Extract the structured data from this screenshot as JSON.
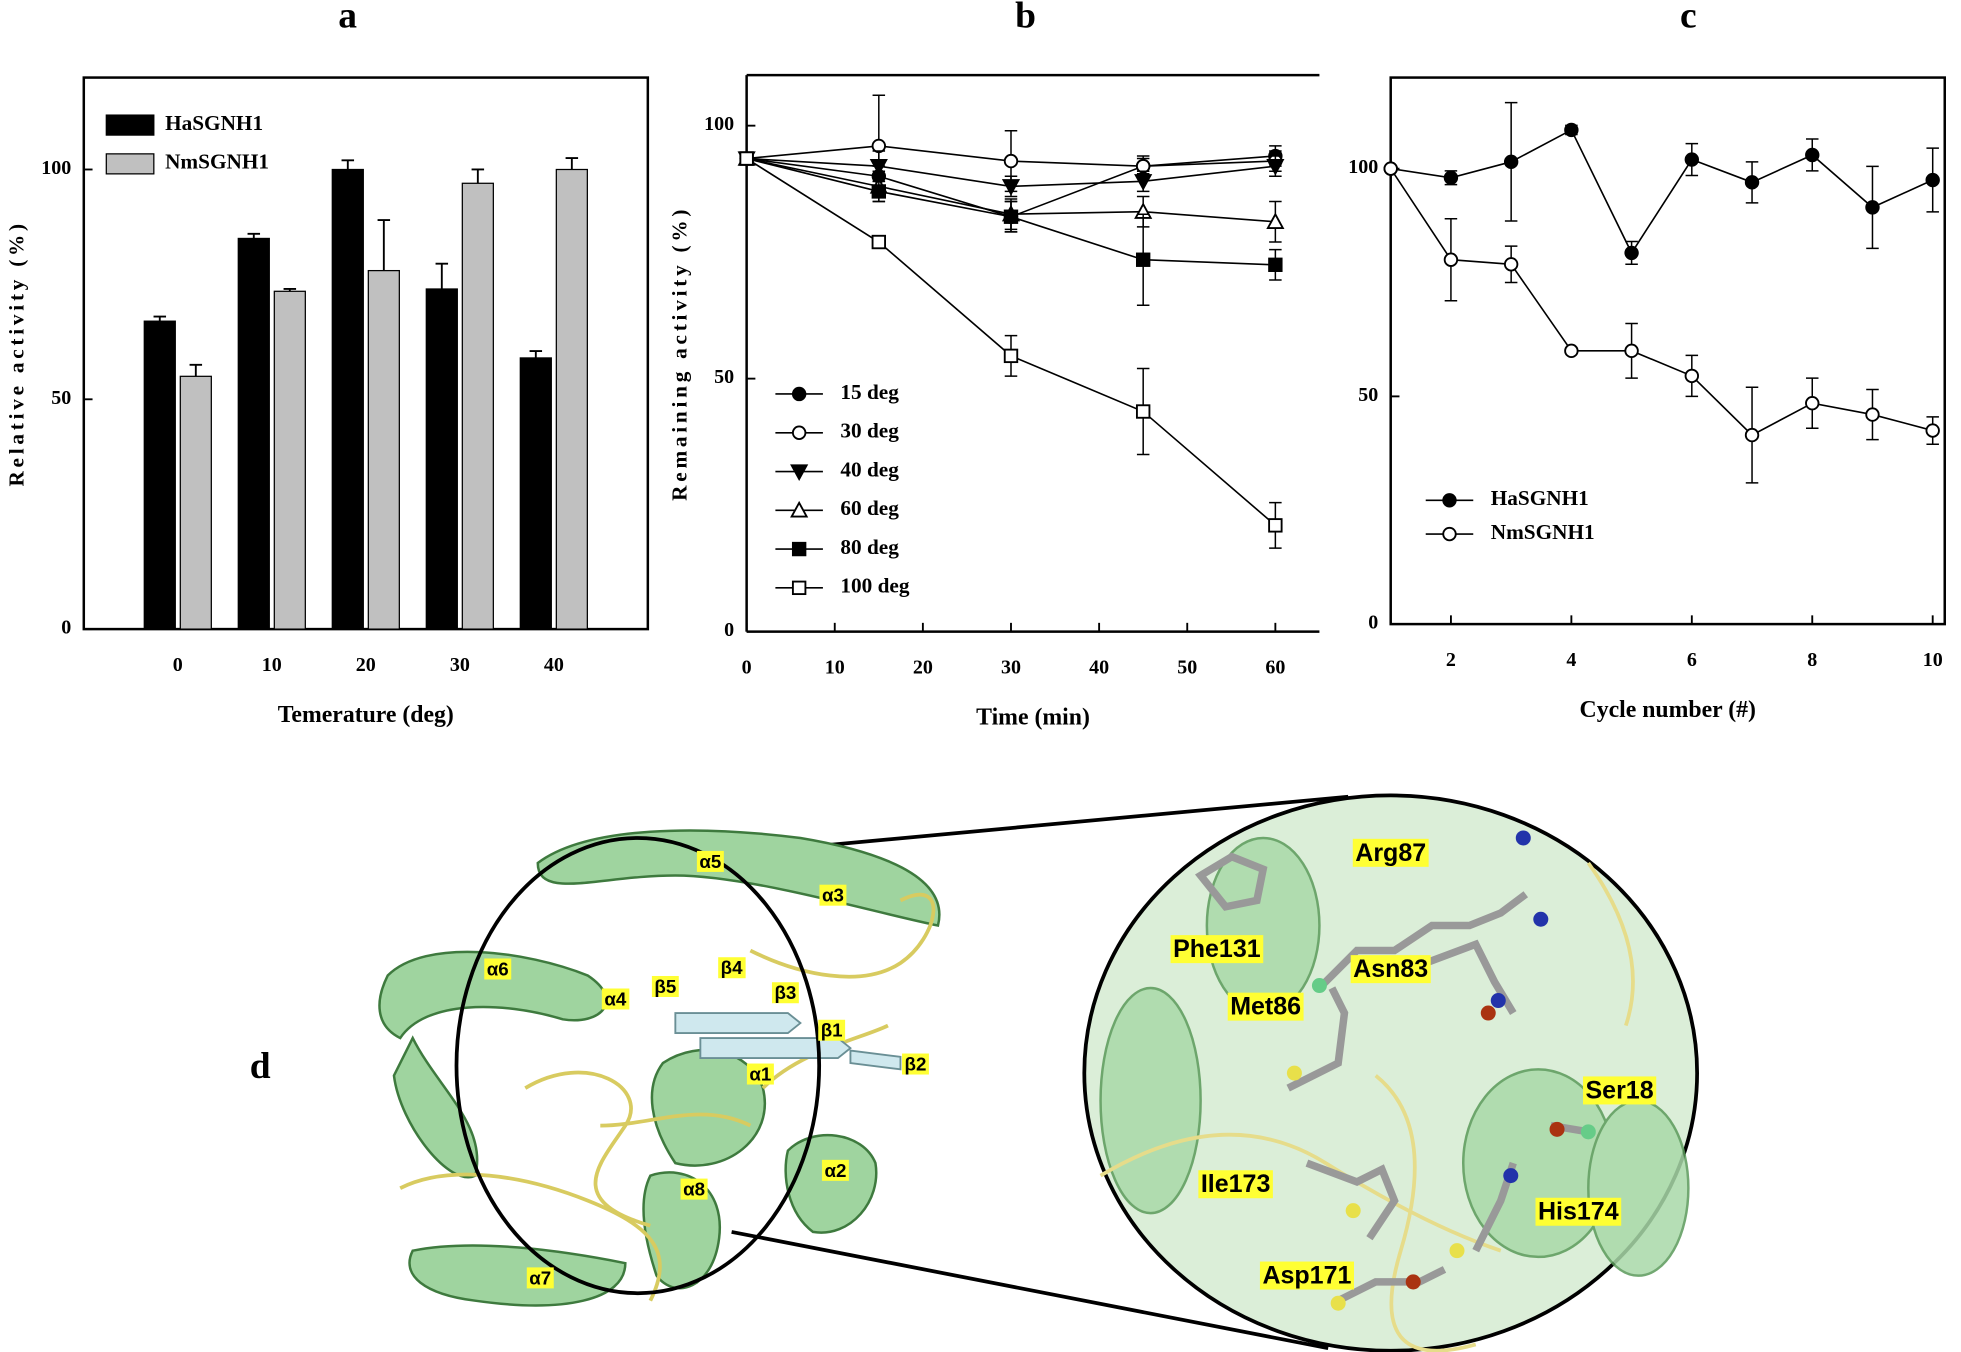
{
  "chart_data": [
    {
      "type": "bar",
      "title": "a",
      "xlabel": "Temerature (deg)",
      "ylabel": "Relative activity (%)",
      "categories": [
        "0",
        "10",
        "20",
        "30",
        "40"
      ],
      "series": [
        {
          "name": "HaSGNH1",
          "color": "#000000",
          "values": [
            67,
            85,
            100,
            74,
            59
          ],
          "errors": [
            1,
            1,
            2,
            5.5,
            1.5
          ]
        },
        {
          "name": "NmSGNH1",
          "color": "#c0c0c0",
          "values": [
            55,
            73.5,
            78,
            97,
            100
          ],
          "errors": [
            2.5,
            0.5,
            11,
            3,
            2.5
          ]
        }
      ],
      "ylim": [
        0,
        120
      ],
      "yticks": [
        0,
        50,
        100
      ],
      "legend": "upper left"
    },
    {
      "type": "line",
      "title": "b",
      "xlabel": "Time (min)",
      "ylabel": "Remaining activity (%)",
      "x": [
        0,
        15,
        30,
        45,
        60
      ],
      "series": [
        {
          "name": "15 deg",
          "color": "#000000",
          "marker": "circle",
          "filled": true,
          "values": [
            93.5,
            90,
            82,
            92,
            94
          ],
          "errors": [
            0,
            2,
            3,
            1.5,
            2
          ]
        },
        {
          "name": "30 deg",
          "color": "#000000",
          "marker": "circle",
          "filled": false,
          "values": [
            93.5,
            96,
            93,
            92,
            93
          ],
          "errors": [
            0,
            10,
            6,
            2,
            2
          ]
        },
        {
          "name": "40 deg",
          "color": "#000000",
          "marker": "triangle-down",
          "filled": true,
          "values": [
            93.5,
            92,
            88,
            89,
            92
          ],
          "errors": [
            0,
            3,
            2,
            2,
            2
          ]
        },
        {
          "name": "60 deg",
          "color": "#000000",
          "marker": "triangle-up",
          "filled": false,
          "values": [
            93.5,
            88,
            82.5,
            83,
            81
          ],
          "errors": [
            0,
            3,
            3,
            3,
            4
          ]
        },
        {
          "name": "80 deg",
          "color": "#000000",
          "marker": "square",
          "filled": true,
          "values": [
            93.5,
            87,
            82,
            73.5,
            72.5
          ],
          "errors": [
            0,
            2,
            3,
            9,
            3
          ]
        },
        {
          "name": "100 deg",
          "color": "#000000",
          "marker": "square",
          "filled": false,
          "values": [
            93.5,
            77,
            54.5,
            43.5,
            21
          ],
          "errors": [
            0,
            1,
            4,
            8.5,
            4.5
          ]
        }
      ],
      "xlim": [
        0,
        65
      ],
      "xticks": [
        0,
        10,
        20,
        30,
        40,
        50,
        60
      ],
      "ylim": [
        0,
        110
      ],
      "yticks": [
        0,
        50,
        100
      ],
      "legend": "center left"
    },
    {
      "type": "line",
      "title": "c",
      "xlabel": "Cycle number (#)",
      "x": [
        1,
        2,
        3,
        4,
        5,
        6,
        7,
        8,
        9,
        10
      ],
      "series": [
        {
          "name": "HaSGNH1",
          "color": "#000000",
          "marker": "circle",
          "filled": true,
          "values": [
            100,
            98,
            101.5,
            108.5,
            81.5,
            102,
            97,
            103,
            91.5,
            97.5
          ],
          "errors": [
            0,
            1.5,
            13,
            1,
            2.5,
            3.5,
            4.5,
            3.5,
            9,
            7
          ]
        },
        {
          "name": "NmSGNH1",
          "color": "#000000",
          "marker": "circle",
          "filled": false,
          "values": [
            100,
            80,
            79,
            60,
            60,
            54.5,
            41.5,
            48.5,
            46,
            42.5
          ],
          "errors": [
            0,
            9,
            4,
            0.5,
            6,
            4.5,
            10.5,
            5.5,
            5.5,
            3
          ]
        }
      ],
      "xlim": [
        1,
        10.2
      ],
      "xticks": [
        2,
        4,
        6,
        8,
        10
      ],
      "ylim": [
        0,
        120
      ],
      "yticks": [
        0,
        50,
        100
      ],
      "legend": "lower left"
    }
  ],
  "structure": {
    "title": "d",
    "overview_labels": [
      "α5",
      "α3",
      "α6",
      "α4",
      "β5",
      "β4",
      "β3",
      "β1",
      "β2",
      "α1",
      "α2",
      "α8",
      "α7"
    ],
    "zoom_labels": [
      "Arg87",
      "Phe131",
      "Asn83",
      "Met86",
      "Ser18",
      "Ile173",
      "His174",
      "Asp171"
    ]
  }
}
